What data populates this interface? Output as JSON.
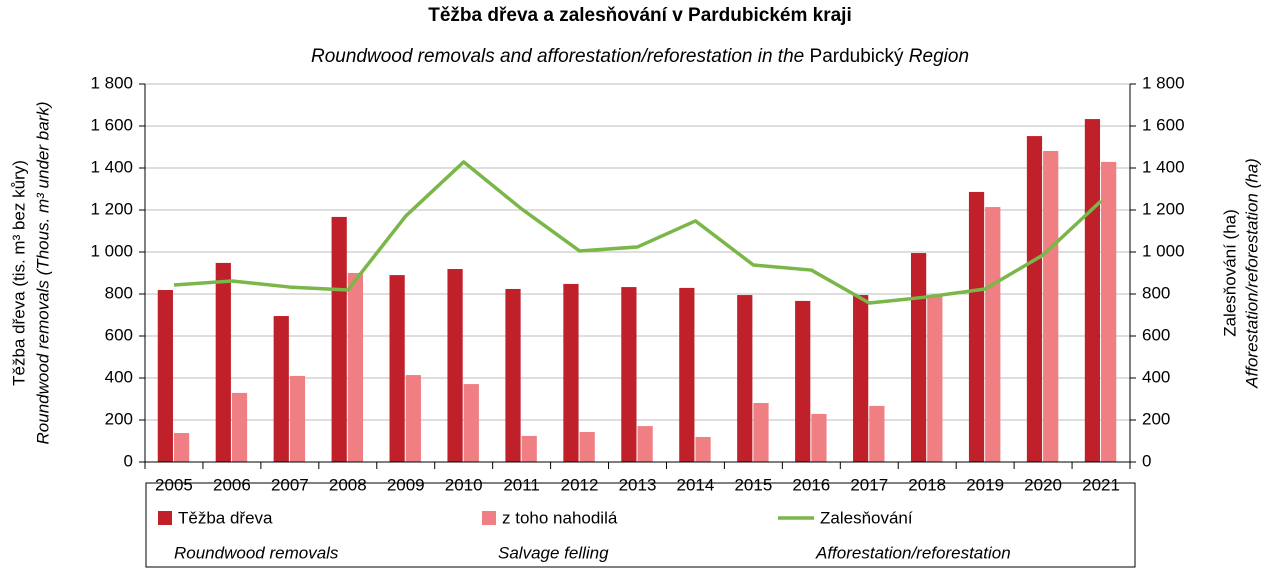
{
  "chart_data": {
    "type": "bar_line",
    "title": "Těžba dřeva a zalesňování v Pardubickém kraji",
    "subtitle_parts": [
      "Roundwood removals and afforestation/reforestation in the",
      "Pardubický",
      "Region"
    ],
    "ylabel": "Těžba dřeva (tis. m³ bez kůry)",
    "ylabel_en": "Roundwood removals (Thous. m³ under bark)",
    "y2label": "Zalesňování (ha)",
    "y2label_en": "Afforestation/reforestation (ha)",
    "categories": [
      "2005",
      "2006",
      "2007",
      "2008",
      "2009",
      "2010",
      "2011",
      "2012",
      "2013",
      "2014",
      "2015",
      "2016",
      "2017",
      "2018",
      "2019",
      "2020",
      "2021"
    ],
    "series": [
      {
        "name": "Těžba dřeva",
        "name_en": "Roundwood removals",
        "color": "#c0202a",
        "kind": "bar",
        "values": [
          819,
          948,
          695,
          1167,
          890,
          919,
          824,
          848,
          833,
          829,
          795,
          767,
          795,
          995,
          1286,
          1552,
          1633
        ]
      },
      {
        "name": "z toho nahodilá",
        "name_en": "Salvage felling",
        "color": "#ef7f83",
        "kind": "bar",
        "values": [
          138,
          329,
          410,
          900,
          414,
          371,
          124,
          143,
          171,
          119,
          281,
          229,
          267,
          795,
          1214,
          1481,
          1429
        ]
      },
      {
        "name": "Zalesňování",
        "name_en": "Afforestation/reforestation",
        "color": "#7ab648",
        "kind": "line",
        "axis": "y2",
        "values": [
          843,
          862,
          833,
          819,
          1171,
          1429,
          1205,
          1005,
          1024,
          1148,
          938,
          914,
          757,
          786,
          824,
          986,
          1243
        ]
      }
    ],
    "ylim": [
      0,
      1800
    ],
    "yticks": [
      0,
      200,
      400,
      600,
      800,
      {
        "value": 1000,
        "label": "1 000"
      },
      {
        "value": 1200,
        "label": "1 200"
      },
      {
        "value": 1400,
        "label": "1 400"
      },
      {
        "value": 1600,
        "label": "1 600"
      },
      {
        "value": 1800,
        "label": "1 800"
      }
    ],
    "y2lim": [
      0,
      1800
    ],
    "y2ticks": [
      0,
      200,
      400,
      600,
      800,
      {
        "value": 1000,
        "label": "1 000"
      },
      {
        "value": 1200,
        "label": "1 200"
      },
      {
        "value": 1400,
        "label": "1 400"
      },
      {
        "value": 1600,
        "label": "1 600"
      },
      {
        "value": 1800,
        "label": "1 800"
      }
    ],
    "grid": true
  }
}
